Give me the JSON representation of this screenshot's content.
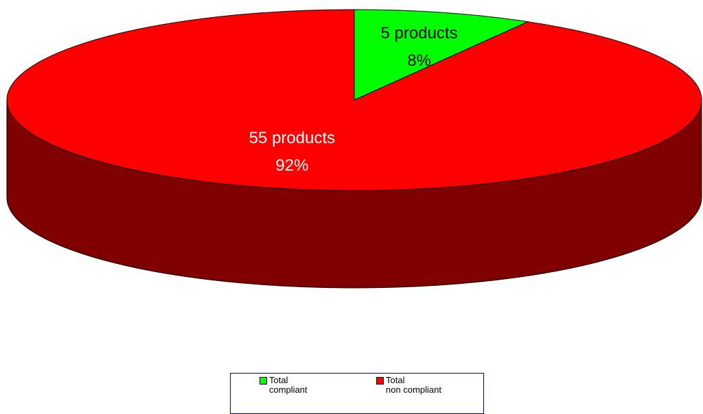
{
  "chart_data": {
    "type": "pie3d",
    "categories": [
      "Total\ncompliant",
      "Total\nnon compliant"
    ],
    "values": [
      5,
      55
    ],
    "value_labels": [
      "5 products",
      "55 products"
    ],
    "percent_labels": [
      "8%",
      "92%"
    ],
    "colors": [
      "#00ff00",
      "#ff0000"
    ],
    "side_colors": [
      "#008000",
      "#800000"
    ],
    "label_colors": [
      "#000000",
      "#ffffff"
    ],
    "legend": "bottom"
  }
}
